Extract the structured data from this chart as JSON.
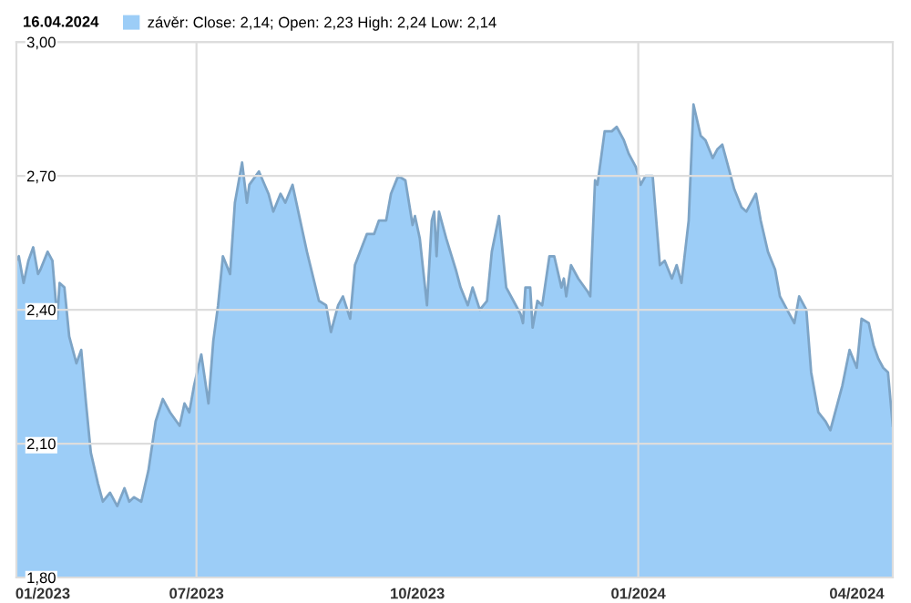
{
  "chart_data": {
    "type": "area",
    "title": "16.04.2024",
    "x": [
      "2023-04-17",
      "2023-04-18",
      "2023-04-20",
      "2023-04-22",
      "2023-04-24",
      "2023-04-26",
      "2023-04-27",
      "2023-04-30",
      "2023-05-02",
      "2023-05-04",
      "2023-05-05",
      "2023-05-07",
      "2023-05-09",
      "2023-05-12",
      "2023-05-14",
      "2023-05-16",
      "2023-05-18",
      "2023-05-21",
      "2023-05-23",
      "2023-05-26",
      "2023-05-29",
      "2023-06-01",
      "2023-06-03",
      "2023-06-05",
      "2023-06-08",
      "2023-06-11",
      "2023-06-14",
      "2023-06-17",
      "2023-06-20",
      "2023-06-24",
      "2023-06-26",
      "2023-06-28",
      "2023-06-30",
      "2023-07-03",
      "2023-07-06",
      "2023-07-08",
      "2023-07-10",
      "2023-07-12",
      "2023-07-15",
      "2023-07-17",
      "2023-07-20",
      "2023-07-22",
      "2023-07-23",
      "2023-07-27",
      "2023-07-31",
      "2023-08-02",
      "2023-08-05",
      "2023-08-07",
      "2023-08-10",
      "2023-08-12",
      "2023-08-16",
      "2023-08-21",
      "2023-08-24",
      "2023-08-26",
      "2023-08-29",
      "2023-08-31",
      "2023-09-03",
      "2023-09-05",
      "2023-09-10",
      "2023-09-13",
      "2023-09-15",
      "2023-09-18",
      "2023-09-20",
      "2023-09-23",
      "2023-09-26",
      "2023-09-29",
      "2023-09-30",
      "2023-10-02",
      "2023-10-05",
      "2023-10-07",
      "2023-10-08",
      "2023-10-09",
      "2023-10-10",
      "2023-10-13",
      "2023-10-17",
      "2023-10-19",
      "2023-10-22",
      "2023-10-24",
      "2023-10-27",
      "2023-10-30",
      "2023-11-01",
      "2023-11-04",
      "2023-11-07",
      "2023-11-10",
      "2023-11-13",
      "2023-11-14",
      "2023-11-15",
      "2023-11-17",
      "2023-11-18",
      "2023-11-20",
      "2023-11-22",
      "2023-11-25",
      "2023-11-27",
      "2023-11-30",
      "2023-12-01",
      "2023-12-02",
      "2023-12-04",
      "2023-12-07",
      "2023-12-11",
      "2023-12-12",
      "2023-12-14",
      "2023-12-15",
      "2023-12-18",
      "2023-12-21",
      "2023-12-23",
      "2023-12-26",
      "2023-12-28",
      "2023-12-31",
      "2024-01-02",
      "2024-01-04",
      "2024-01-07",
      "2024-01-10",
      "2024-01-12",
      "2024-01-15",
      "2024-01-17",
      "2024-01-19",
      "2024-01-22",
      "2024-01-24",
      "2024-01-27",
      "2024-01-29",
      "2024-02-01",
      "2024-02-03",
      "2024-02-05",
      "2024-02-08",
      "2024-02-10",
      "2024-02-13",
      "2024-02-15",
      "2024-02-19",
      "2024-02-21",
      "2024-02-24",
      "2024-02-27",
      "2024-02-29",
      "2024-03-03",
      "2024-03-06",
      "2024-03-08",
      "2024-03-11",
      "2024-03-13",
      "2024-03-16",
      "2024-03-19",
      "2024-03-21",
      "2024-03-24",
      "2024-03-26",
      "2024-03-29",
      "2024-04-01",
      "2024-04-03",
      "2024-04-06",
      "2024-04-08",
      "2024-04-10",
      "2024-04-12",
      "2024-04-14",
      "2024-04-16"
    ],
    "series": [
      {
        "name": "závěr: Close: 2,14; Open: 2,23 High: 2,24 Low: 2,14",
        "color": "#9ccdf7",
        "values": [
          2.51,
          2.52,
          2.46,
          2.51,
          2.54,
          2.48,
          2.49,
          2.53,
          2.51,
          2.38,
          2.46,
          2.45,
          2.34,
          2.28,
          2.31,
          2.19,
          2.08,
          2.01,
          1.97,
          1.99,
          1.96,
          2.0,
          1.97,
          1.98,
          1.97,
          2.04,
          2.15,
          2.2,
          2.17,
          2.14,
          2.19,
          2.17,
          2.23,
          2.3,
          2.19,
          2.33,
          2.41,
          2.52,
          2.48,
          2.64,
          2.73,
          2.64,
          2.68,
          2.71,
          2.66,
          2.62,
          2.66,
          2.64,
          2.68,
          2.63,
          2.53,
          2.42,
          2.41,
          2.35,
          2.41,
          2.43,
          2.38,
          2.5,
          2.57,
          2.57,
          2.6,
          2.6,
          2.66,
          2.7,
          2.69,
          2.59,
          2.61,
          2.56,
          2.41,
          2.6,
          2.62,
          2.52,
          2.62,
          2.56,
          2.49,
          2.45,
          2.41,
          2.45,
          2.4,
          2.42,
          2.53,
          2.61,
          2.45,
          2.42,
          2.39,
          2.37,
          2.45,
          2.45,
          2.36,
          2.42,
          2.41,
          2.52,
          2.52,
          2.45,
          2.47,
          2.43,
          2.5,
          2.47,
          2.44,
          2.43,
          2.69,
          2.68,
          2.8,
          2.8,
          2.81,
          2.78,
          2.75,
          2.72,
          2.68,
          2.7,
          2.7,
          2.5,
          2.51,
          2.47,
          2.5,
          2.46,
          2.6,
          2.86,
          2.79,
          2.78,
          2.74,
          2.76,
          2.77,
          2.71,
          2.67,
          2.63,
          2.62,
          2.66,
          2.6,
          2.53,
          2.49,
          2.43,
          2.4,
          2.37,
          2.43,
          2.4,
          2.26,
          2.17,
          2.15,
          2.13,
          2.19,
          2.23,
          2.31,
          2.27,
          2.38,
          2.37,
          2.32,
          2.29,
          2.27,
          2.26,
          2.14
        ]
      }
    ],
    "xlim": [
      "2023-04-17",
      "2024-04-16"
    ],
    "xticks": [
      {
        "value": "2023-04-28",
        "label": "01/2023"
      },
      {
        "value": "2023-07-01",
        "label": "07/2023"
      },
      {
        "value": "2023-10-01",
        "label": "10/2023"
      },
      {
        "value": "2024-01-01",
        "label": "01/2024"
      },
      {
        "value": "2024-04-01",
        "label": "04/2024"
      }
    ],
    "ylim": [
      1.8,
      3.0
    ],
    "yticks": [
      {
        "value": 1.8,
        "label": "1,80"
      },
      {
        "value": 2.1,
        "label": "2,10"
      },
      {
        "value": 2.4,
        "label": "2,40"
      },
      {
        "value": 2.7,
        "label": "2,70"
      },
      {
        "value": 3.0,
        "label": "3,00"
      }
    ],
    "ref_lines": [
      {
        "axis": "x",
        "value": "2023-07-01",
        "color": "#dddddd"
      },
      {
        "axis": "x",
        "value": "2024-01-01",
        "color": "#dddddd"
      }
    ],
    "grid": "y",
    "legend": "top"
  }
}
